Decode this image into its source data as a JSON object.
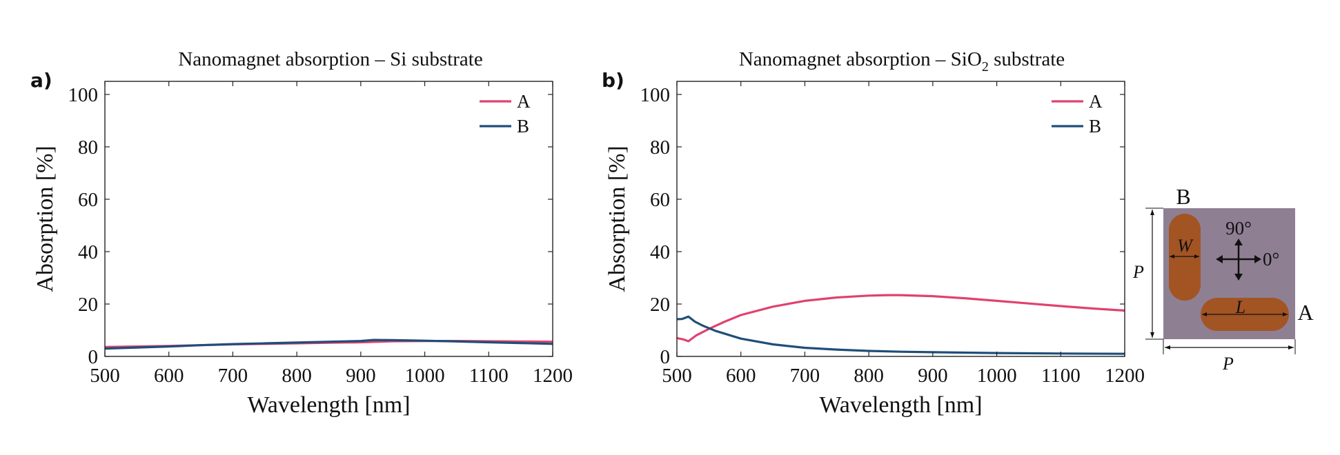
{
  "colors": {
    "A": "#e0426e",
    "B": "#1f4e79",
    "background_inset": "#8f7f93",
    "magnet": "#a35423"
  },
  "panels": [
    {
      "letter": "a)",
      "title": "Nanomagnet absorption – Si substrate"
    },
    {
      "letter": "b)",
      "title_main": "Nanomagnet absorption – SiO",
      "title_sub": "2",
      "title_end": " substrate"
    }
  ],
  "chart_data": [
    {
      "type": "line",
      "title": "Nanomagnet absorption – Si substrate",
      "xlabel": "Wavelength [nm]",
      "ylabel": "Absorption [%]",
      "xlim": [
        500,
        1200
      ],
      "ylim": [
        0,
        105
      ],
      "xticks": [
        500,
        600,
        700,
        800,
        900,
        1000,
        1100,
        1200
      ],
      "yticks": [
        0,
        20,
        40,
        60,
        80,
        100
      ],
      "grid": false,
      "legend": "top-right",
      "series": [
        {
          "name": "A",
          "x": [
            500,
            550,
            600,
            650,
            700,
            750,
            800,
            850,
            900,
            950,
            1000,
            1050,
            1100,
            1150,
            1200
          ],
          "values": [
            3.6,
            3.8,
            4.0,
            4.3,
            4.6,
            4.8,
            5.0,
            5.2,
            5.4,
            5.8,
            5.9,
            5.9,
            5.8,
            5.7,
            5.6
          ]
        },
        {
          "name": "B",
          "x": [
            500,
            550,
            600,
            650,
            700,
            750,
            800,
            850,
            900,
            920,
            950,
            1000,
            1050,
            1100,
            1150,
            1200
          ],
          "values": [
            3.0,
            3.4,
            3.8,
            4.3,
            4.7,
            5.0,
            5.3,
            5.6,
            5.9,
            6.3,
            6.2,
            6.0,
            5.7,
            5.4,
            5.1,
            4.8
          ]
        }
      ]
    },
    {
      "type": "line",
      "title": "Nanomagnet absorption – SiO2 substrate",
      "xlabel": "Wavelength [nm]",
      "ylabel": "Absorption [%]",
      "xlim": [
        500,
        1200
      ],
      "ylim": [
        0,
        105
      ],
      "xticks": [
        500,
        600,
        700,
        800,
        900,
        1000,
        1100,
        1200
      ],
      "yticks": [
        0,
        20,
        40,
        60,
        80,
        100
      ],
      "grid": false,
      "legend": "top-right",
      "series": [
        {
          "name": "A",
          "x": [
            500,
            510,
            518,
            530,
            550,
            575,
            600,
            650,
            700,
            750,
            800,
            830,
            850,
            900,
            950,
            1000,
            1050,
            1100,
            1150,
            1200
          ],
          "values": [
            7.0,
            6.5,
            5.8,
            8.0,
            10.5,
            13.3,
            15.8,
            19.0,
            21.2,
            22.5,
            23.2,
            23.4,
            23.4,
            23.0,
            22.2,
            21.2,
            20.2,
            19.2,
            18.3,
            17.5
          ]
        },
        {
          "name": "B",
          "x": [
            500,
            508,
            518,
            528,
            540,
            560,
            600,
            650,
            700,
            750,
            800,
            850,
            900,
            1000,
            1100,
            1200
          ],
          "values": [
            14.2,
            14.3,
            15.2,
            13.3,
            11.8,
            9.8,
            6.8,
            4.6,
            3.3,
            2.6,
            2.1,
            1.8,
            1.6,
            1.3,
            1.1,
            1.0
          ]
        }
      ]
    }
  ],
  "inset": {
    "label_B": "B",
    "label_A": "A",
    "dim_W": "W",
    "dim_L": "L",
    "dim_P_vertical": "P",
    "dim_P_horizontal": "P",
    "angle_90": "90°",
    "angle_0": "0°"
  }
}
